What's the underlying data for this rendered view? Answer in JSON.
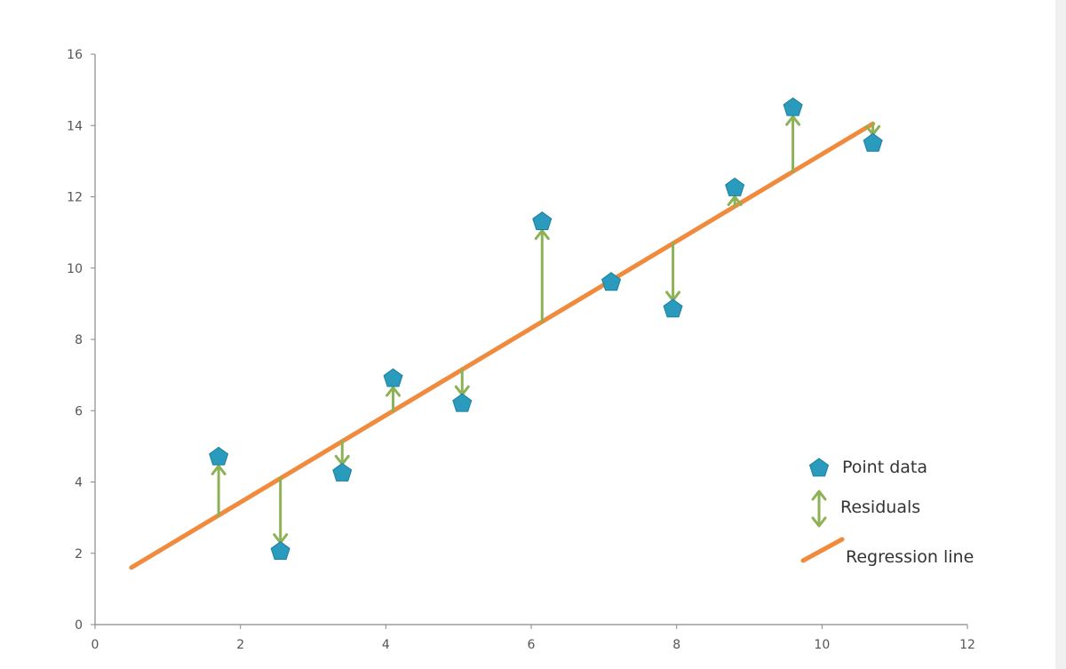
{
  "chart_data": {
    "type": "scatter",
    "title": "",
    "xlabel": "",
    "ylabel": "",
    "xlim": [
      0,
      12
    ],
    "ylim": [
      0,
      16
    ],
    "x_ticks": [
      "0",
      "2",
      "4",
      "6",
      "8",
      "10",
      "12"
    ],
    "y_ticks": [
      "0",
      "2",
      "4",
      "6",
      "8",
      "10",
      "12",
      "14",
      "16"
    ],
    "grid": false,
    "legend_position": "bottom-right",
    "series": [
      {
        "name": "Point data",
        "kind": "scatter",
        "marker": "pentagon",
        "color": "#2a9bbd",
        "x": [
          1.7,
          2.55,
          3.4,
          4.1,
          5.05,
          6.15,
          7.1,
          7.95,
          8.8,
          9.6,
          10.7
        ],
        "y": [
          4.7,
          2.05,
          4.25,
          6.9,
          6.2,
          11.3,
          9.6,
          8.85,
          12.25,
          14.5,
          13.5
        ]
      },
      {
        "name": "Residuals",
        "kind": "arrows",
        "color": "#8db255"
      },
      {
        "name": "Regression line",
        "kind": "line",
        "color": "#f08a3c",
        "x": [
          0.5,
          10.7
        ],
        "y": [
          1.6,
          14.05
        ]
      }
    ]
  },
  "legend": {
    "point_label": "Point data",
    "residual_label": "Residuals",
    "line_label": "Regression line"
  }
}
